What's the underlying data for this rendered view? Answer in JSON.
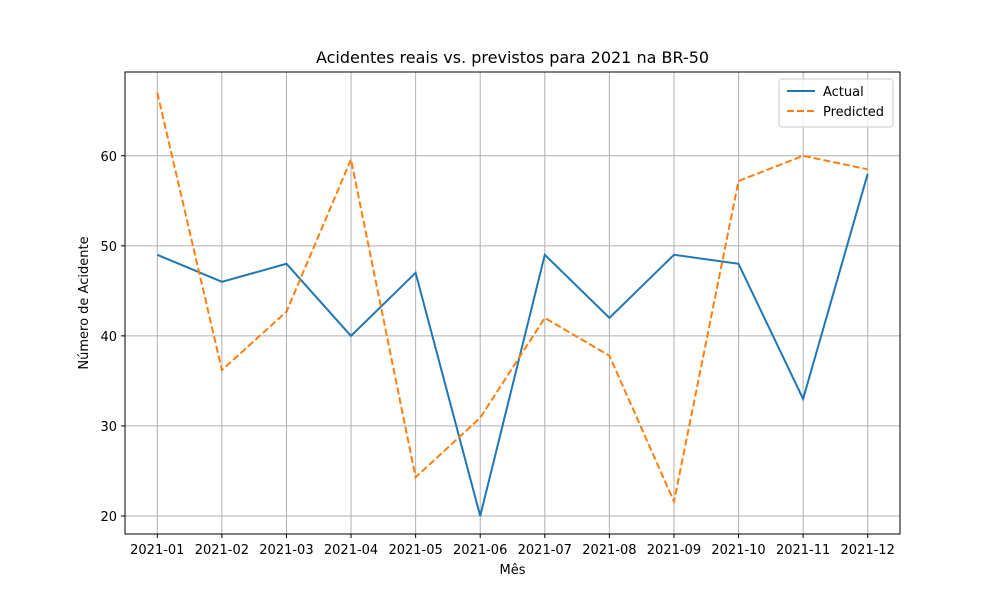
{
  "chart_data": {
    "type": "line",
    "title": "Acidentes reais vs. previstos para 2021 na BR-50",
    "xlabel": "Mês",
    "ylabel": "Número de Acidente",
    "categories": [
      "2021-01",
      "2021-02",
      "2021-03",
      "2021-04",
      "2021-05",
      "2021-06",
      "2021-07",
      "2021-08",
      "2021-09",
      "2021-10",
      "2021-11",
      "2021-12"
    ],
    "ylim": [
      18,
      69.3
    ],
    "yticks": [
      20,
      30,
      40,
      50,
      60
    ],
    "grid": true,
    "legend_position": "top-right",
    "series": [
      {
        "name": "Actual",
        "color": "#1f77b4",
        "style": "solid",
        "values": [
          49,
          46,
          48,
          40,
          47,
          20,
          49,
          42,
          49,
          48,
          33,
          58
        ]
      },
      {
        "name": "Predicted",
        "color": "#ff7f0e",
        "style": "dashed",
        "values": [
          67,
          36.2,
          42.7,
          59.6,
          24.3,
          30.9,
          42,
          37.8,
          21.6,
          57.2,
          60,
          58.5
        ]
      }
    ]
  }
}
